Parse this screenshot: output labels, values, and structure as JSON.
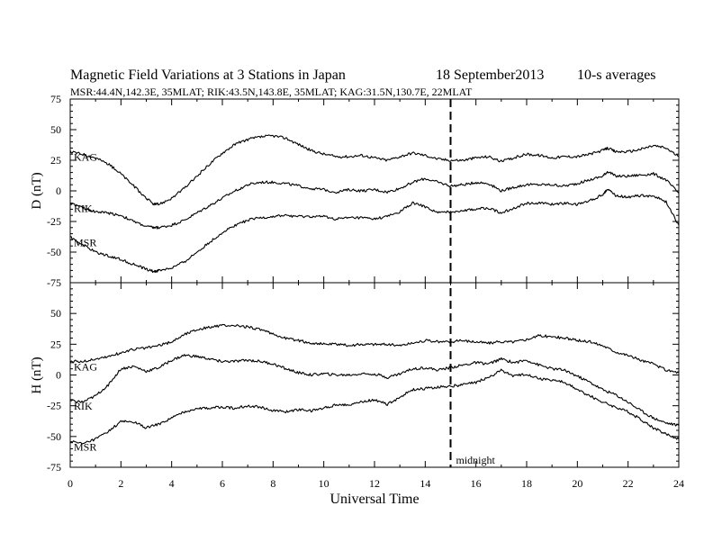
{
  "header": {
    "title": "Magnetic Field Variations at 3 Stations in Japan",
    "date": "18 September2013",
    "averaging": "10-s averages",
    "stations_line": "MSR:44.4N,142.3E, 35MLAT;  RIK:43.5N,143.8E, 35MLAT;  KAG:31.5N,130.7E, 22MLAT"
  },
  "x_axis": {
    "label": "Universal Time",
    "ticks": [
      "0",
      "2",
      "4",
      "6",
      "8",
      "10",
      "12",
      "14",
      "16",
      "18",
      "20",
      "22",
      "24"
    ]
  },
  "midnight_marker": {
    "x": 15,
    "label": "midnight"
  },
  "colors": {
    "ink": "#000000",
    "background": "#ffffff"
  },
  "chart_data": [
    {
      "type": "line",
      "ylabel": "D (nT)",
      "xlabel": "",
      "xlim": [
        0,
        24
      ],
      "ylim": [
        -75,
        75
      ],
      "yticks": [
        "75",
        "50",
        "25",
        "0",
        "-25",
        "-50",
        "-75"
      ],
      "series": [
        {
          "name": "KAG",
          "x": [
            0,
            0.5,
            1,
            1.5,
            2,
            2.5,
            3,
            3.3,
            3.5,
            4,
            4.5,
            5,
            5.5,
            6,
            6.5,
            7,
            7.5,
            8,
            8.5,
            9,
            9.5,
            10,
            10.5,
            11,
            11.5,
            12,
            12.5,
            13,
            13.5,
            14,
            14.5,
            15,
            15.5,
            16,
            16.5,
            17,
            17.5,
            18,
            18.5,
            19,
            19.5,
            20,
            20.5,
            21,
            21.2,
            21.5,
            22,
            22.5,
            23,
            23.5,
            24
          ],
          "y": [
            32,
            30,
            27,
            22,
            14,
            4,
            -6,
            -11,
            -11,
            -6,
            2,
            12,
            22,
            31,
            38,
            42,
            44,
            45,
            43,
            38,
            33,
            30,
            28,
            28,
            29,
            27,
            25,
            28,
            31,
            29,
            26,
            25,
            25,
            27,
            28,
            24,
            27,
            30,
            29,
            27,
            28,
            28,
            30,
            33,
            35,
            32,
            32,
            34,
            37,
            35,
            28
          ]
        },
        {
          "name": "RIK",
          "x": [
            0,
            0.5,
            1,
            1.5,
            2,
            2.5,
            3,
            3.3,
            3.5,
            4,
            4.5,
            5,
            5.5,
            6,
            6.5,
            7,
            7.5,
            8,
            8.5,
            9,
            9.5,
            10,
            10.5,
            11,
            11.5,
            12,
            12.5,
            13,
            13.5,
            14,
            14.5,
            15,
            15.5,
            16,
            16.5,
            17,
            17.5,
            18,
            18.5,
            19,
            19.5,
            20,
            20.5,
            21,
            21.2,
            21.5,
            22,
            22.5,
            23,
            23.5,
            24
          ],
          "y": [
            -10,
            -14,
            -17,
            -18,
            -20,
            -25,
            -29,
            -30,
            -30,
            -28,
            -24,
            -18,
            -12,
            -6,
            0,
            5,
            7,
            7,
            6,
            4,
            2,
            1,
            -1,
            1,
            0,
            1,
            -1,
            2,
            7,
            10,
            7,
            4,
            5,
            7,
            6,
            0,
            3,
            5,
            5,
            5,
            4,
            6,
            9,
            12,
            16,
            12,
            12,
            13,
            14,
            9,
            -2
          ]
        },
        {
          "name": "MSR",
          "x": [
            0,
            0.5,
            1,
            1.5,
            2,
            2.5,
            3,
            3.3,
            3.5,
            4,
            4.5,
            5,
            5.5,
            6,
            6.5,
            7,
            7.5,
            8,
            8.5,
            9,
            9.5,
            10,
            10.5,
            11,
            11.5,
            12,
            12.5,
            13,
            13.5,
            14,
            14.5,
            15,
            15.5,
            16,
            16.5,
            17,
            17.5,
            18,
            18.5,
            19,
            19.5,
            20,
            20.5,
            21,
            21.2,
            21.5,
            22,
            22.5,
            23,
            23.5,
            24
          ],
          "y": [
            -38,
            -44,
            -50,
            -53,
            -56,
            -60,
            -64,
            -66,
            -65,
            -63,
            -58,
            -50,
            -42,
            -34,
            -28,
            -24,
            -22,
            -21,
            -20,
            -21,
            -21,
            -21,
            -23,
            -22,
            -22,
            -23,
            -21,
            -17,
            -10,
            -13,
            -18,
            -17,
            -16,
            -15,
            -14,
            -18,
            -14,
            -10,
            -10,
            -11,
            -10,
            -11,
            -8,
            -3,
            2,
            -4,
            -5,
            -4,
            -4,
            -9,
            -28
          ]
        }
      ]
    },
    {
      "type": "line",
      "ylabel": "H (nT)",
      "xlabel": "Universal Time",
      "xlim": [
        0,
        24
      ],
      "ylim": [
        -75,
        75
      ],
      "yticks": [
        "50",
        "25",
        "0",
        "-25",
        "-50",
        "-75"
      ],
      "series": [
        {
          "name": "KAG",
          "x": [
            0,
            0.5,
            1,
            1.5,
            2,
            2.5,
            3,
            3.5,
            4,
            4.5,
            5,
            5.5,
            6,
            6.5,
            7,
            7.5,
            8,
            8.5,
            9,
            9.5,
            10,
            10.5,
            11,
            11.5,
            12,
            12.5,
            13,
            13.5,
            14,
            14.5,
            15,
            15.5,
            16,
            16.5,
            17,
            17.5,
            18,
            18.5,
            19,
            19.5,
            20,
            20.5,
            21,
            21.5,
            22,
            22.5,
            23,
            23.5,
            24
          ],
          "y": [
            11,
            11,
            13,
            15,
            18,
            21,
            22,
            24,
            27,
            33,
            37,
            39,
            40,
            40,
            39,
            37,
            33,
            30,
            28,
            26,
            25,
            25,
            24,
            25,
            25,
            25,
            24,
            26,
            28,
            27,
            27,
            28,
            27,
            26,
            27,
            27,
            29,
            32,
            31,
            30,
            28,
            27,
            24,
            19,
            16,
            12,
            9,
            4,
            2
          ]
        },
        {
          "name": "RIK",
          "x": [
            0,
            0.5,
            1,
            1.5,
            2,
            2.5,
            3,
            3.5,
            4,
            4.5,
            5,
            5.5,
            6,
            6.5,
            7,
            7.5,
            8,
            8.5,
            9,
            9.5,
            10,
            10.5,
            11,
            11.5,
            12,
            12.5,
            13,
            13.5,
            14,
            14.5,
            15,
            15.5,
            16,
            16.5,
            17,
            17.5,
            18,
            18.5,
            19,
            19.5,
            20,
            20.5,
            21,
            21.5,
            22,
            22.5,
            23,
            23.5,
            24
          ],
          "y": [
            -21,
            -22,
            -17,
            -8,
            5,
            7,
            3,
            6,
            12,
            16,
            15,
            13,
            11,
            11,
            12,
            11,
            9,
            5,
            2,
            0,
            1,
            0,
            0,
            1,
            1,
            -2,
            1,
            5,
            6,
            4,
            6,
            8,
            10,
            9,
            13,
            10,
            12,
            8,
            5,
            4,
            -1,
            -6,
            -12,
            -16,
            -22,
            -29,
            -35,
            -39,
            -41
          ]
        },
        {
          "name": "MSR",
          "x": [
            0,
            0.5,
            1,
            1.5,
            2,
            2.5,
            3,
            3.5,
            4,
            4.5,
            5,
            5.5,
            6,
            6.5,
            7,
            7.5,
            8,
            8.5,
            9,
            9.5,
            10,
            10.5,
            11,
            11.5,
            12,
            12.5,
            13,
            13.5,
            14,
            14.5,
            15,
            15.5,
            16,
            16.5,
            17,
            17.5,
            18,
            18.5,
            19,
            19.5,
            20,
            20.5,
            21,
            21.5,
            22,
            22.5,
            23,
            23.5,
            24
          ],
          "y": [
            -54,
            -56,
            -52,
            -46,
            -38,
            -38,
            -43,
            -40,
            -35,
            -30,
            -27,
            -27,
            -26,
            -27,
            -25,
            -26,
            -29,
            -30,
            -28,
            -29,
            -27,
            -24,
            -24,
            -22,
            -20,
            -24,
            -18,
            -12,
            -11,
            -10,
            -9,
            -8,
            -6,
            -2,
            4,
            -1,
            1,
            -3,
            -4,
            -6,
            -12,
            -17,
            -22,
            -26,
            -30,
            -36,
            -43,
            -48,
            -52
          ]
        }
      ]
    }
  ]
}
